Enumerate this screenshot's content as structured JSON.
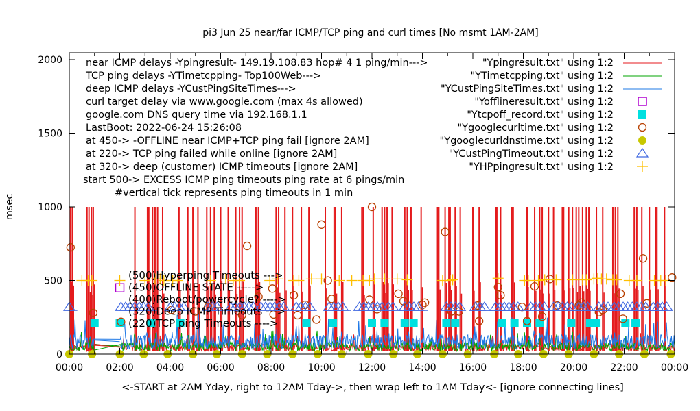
{
  "chart_data": {
    "type": "line",
    "title": "pi3 Jun 25  near/far ICMP/TCP ping and curl times [No msmt  1AM-2AM]",
    "xlabel": "<-START at 2AM Yday, right to 12AM Tday->, then wrap left to 1AM Tday<- [ignore connecting lines]",
    "ylabel": "msec",
    "xlim": [
      0,
      24
    ],
    "ylim": [
      0,
      2000
    ],
    "grid": false,
    "legend_position": "top-right",
    "x_tick_labels": [
      "00:00",
      "02:00",
      "04:00",
      "06:00",
      "08:00",
      "10:00",
      "12:00",
      "14:00",
      "16:00",
      "18:00",
      "20:00",
      "22:00",
      "00:00"
    ],
    "y_tick_labels": [
      "0",
      "500",
      "1000",
      "1500",
      "2000"
    ],
    "y_ticks": [
      0,
      500,
      1000,
      1500,
      2000
    ],
    "notes": [
      "near ICMP delays -Ypingresult- 149.19.108.83 hop# 4 1 ping/min--->",
      "TCP ping delays -YTimetcpping- Top100Web--->",
      "deep ICMP delays -YCustPingSiteTimes--->",
      "curl target delay via www.google.com (max 4s allowed)",
      "google.com DNS query time via 192.168.1.1",
      "LastBoot: 2022-06-24 15:26:08",
      "at 450-> -OFFLINE near ICMP+TCP ping fail [ignore 2AM]",
      "at 220-> TCP ping failed while online [ignore 2AM]",
      "at 320-> deep (customer) ICMP timeouts [ignore 2AM]",
      "start 500-> EXCESS ICMP ping timeouts ping rate at 6 pings/min",
      "#vertical tick represents ping timeouts in 1 min"
    ],
    "level_annotations": [
      "(500)Hyperping Timeouts --->",
      "(450)OFFLINE STATE ----->",
      "(400)Reboot/powercycle? ---->",
      "(320)Deep ICMP Timeouts --->",
      "(220)TCP ping Timeouts ---->"
    ],
    "series": [
      {
        "name": "\"Ypingresult.txt\" using 1:2",
        "style": "lines",
        "color": "#e41a1c",
        "baseline_msec": 40,
        "timeout_spikes_hours": [
          0.05,
          0.12,
          0.7,
          0.78,
          0.88,
          0.95,
          2.6,
          3.1,
          3.15,
          3.3,
          3.4,
          3.5,
          3.7,
          4.35,
          4.7,
          4.9,
          5.1,
          5.45,
          5.6,
          5.75,
          6.0,
          6.3,
          6.6,
          6.75,
          6.85,
          7.4,
          7.5,
          8.2,
          8.3,
          8.55,
          8.85,
          9.2,
          9.5,
          10.15,
          10.5,
          10.55,
          10.8,
          11.6,
          11.65,
          12.05,
          12.4,
          12.5,
          12.6,
          12.8,
          13.3,
          13.4,
          13.55,
          13.95,
          14.6,
          14.65,
          14.9,
          15.05,
          15.1,
          15.3,
          15.5,
          16.0,
          16.25,
          16.9,
          16.95,
          17.1,
          17.55,
          17.6,
          18.15,
          18.45,
          18.65,
          18.75,
          19.0,
          19.2,
          19.55,
          19.6,
          19.8,
          19.95,
          20.1,
          20.2,
          20.35,
          20.5,
          20.6,
          20.9,
          21.15,
          21.55,
          21.65,
          21.75,
          22.4,
          22.5,
          22.7,
          23.0,
          23.25,
          23.3,
          23.6
        ]
      },
      {
        "name": "\"YTimetcpping.txt\" using 1:2",
        "style": "lines",
        "color": "#00a600",
        "baseline_msec": 45
      },
      {
        "name": "\"YCustPingSiteTimes.txt\" using 1:2",
        "style": "lines",
        "color": "#1e78e6",
        "baseline_msec": 75
      },
      {
        "name": "\"Yofflineresult.txt\" using 1:2",
        "style": "points",
        "marker": "open-square",
        "color": "#b000d0",
        "points": [
          [
            2.0,
            450
          ]
        ]
      },
      {
        "name": "\"Ytcpoff_record.txt\" using 1:2",
        "style": "points",
        "marker": "filled-square",
        "color": "#00e0e0",
        "points": [
          [
            1.0,
            210
          ],
          [
            2.0,
            210
          ],
          [
            3.25,
            210
          ],
          [
            4.4,
            210
          ],
          [
            9.4,
            210
          ],
          [
            10.45,
            210
          ],
          [
            12.0,
            210
          ],
          [
            12.5,
            210
          ],
          [
            13.3,
            210
          ],
          [
            13.65,
            210
          ],
          [
            14.95,
            210
          ],
          [
            15.3,
            210
          ],
          [
            17.15,
            210
          ],
          [
            17.65,
            210
          ],
          [
            18.15,
            210
          ],
          [
            18.65,
            210
          ],
          [
            19.9,
            210
          ],
          [
            20.65,
            210
          ],
          [
            20.9,
            210
          ],
          [
            22.05,
            210
          ],
          [
            22.45,
            210
          ]
        ]
      },
      {
        "name": "\"Ygooglecurltime.txt\" using 1:2",
        "style": "points",
        "marker": "open-circle",
        "color": "#b84000",
        "points": [
          [
            0.05,
            725
          ],
          [
            0.95,
            280
          ],
          [
            2.05,
            220
          ],
          [
            4.05,
            300
          ],
          [
            5.0,
            290
          ],
          [
            5.5,
            320
          ],
          [
            6.85,
            265
          ],
          [
            7.05,
            735
          ],
          [
            7.5,
            390
          ],
          [
            8.05,
            445
          ],
          [
            8.1,
            270
          ],
          [
            8.9,
            400
          ],
          [
            9.05,
            265
          ],
          [
            9.35,
            335
          ],
          [
            10.0,
            880
          ],
          [
            9.8,
            235
          ],
          [
            10.25,
            500
          ],
          [
            10.4,
            375
          ],
          [
            12.0,
            1000
          ],
          [
            11.9,
            370
          ],
          [
            12.2,
            305
          ],
          [
            13.05,
            410
          ],
          [
            13.25,
            360
          ],
          [
            14.0,
            335
          ],
          [
            14.1,
            350
          ],
          [
            14.9,
            830
          ],
          [
            15.15,
            290
          ],
          [
            15.45,
            290
          ],
          [
            16.2,
            330
          ],
          [
            16.25,
            225
          ],
          [
            17.0,
            455
          ],
          [
            17.1,
            400
          ],
          [
            17.95,
            320
          ],
          [
            18.15,
            225
          ],
          [
            18.45,
            460
          ],
          [
            18.75,
            255
          ],
          [
            19.05,
            510
          ],
          [
            19.35,
            330
          ],
          [
            20.2,
            330
          ],
          [
            20.3,
            350
          ],
          [
            21.0,
            285
          ],
          [
            21.15,
            300
          ],
          [
            21.85,
            410
          ],
          [
            21.95,
            240
          ],
          [
            22.75,
            650
          ],
          [
            22.9,
            345
          ],
          [
            23.9,
            520
          ]
        ]
      },
      {
        "name": "\"Ygooglecurldnstime.txt\" using 1:2",
        "style": "points",
        "marker": "filled-circle",
        "color": "#c8c800",
        "points": [
          [
            0.0,
            0
          ],
          [
            0.9,
            0
          ],
          [
            2.0,
            0
          ],
          [
            2.95,
            0
          ],
          [
            3.9,
            0
          ],
          [
            4.9,
            0
          ],
          [
            5.85,
            0
          ],
          [
            6.85,
            0
          ],
          [
            7.85,
            0
          ],
          [
            8.85,
            0
          ],
          [
            9.85,
            0
          ],
          [
            10.8,
            0
          ],
          [
            11.85,
            0
          ],
          [
            12.85,
            0
          ],
          [
            13.8,
            0
          ],
          [
            14.8,
            0
          ],
          [
            15.8,
            0
          ],
          [
            16.85,
            0
          ],
          [
            17.8,
            0
          ],
          [
            18.8,
            0
          ],
          [
            19.8,
            0
          ],
          [
            20.8,
            0
          ],
          [
            21.8,
            0
          ],
          [
            22.8,
            0
          ],
          [
            23.85,
            0
          ]
        ]
      },
      {
        "name": "\"YCustPingTimeout.txt\" using 1:2",
        "style": "points",
        "marker": "open-triangle",
        "color": "#4169e1",
        "y_level_msec": 320,
        "clusters_hours": [
          [
            0.0,
            0.1
          ],
          [
            2.05,
            3.25
          ],
          [
            4.0,
            4.6
          ],
          [
            5.5,
            6.0
          ],
          [
            6.4,
            7.3
          ],
          [
            7.6,
            8.6
          ],
          [
            9.0,
            9.6
          ],
          [
            10.3,
            10.95
          ],
          [
            11.5,
            12.4
          ],
          [
            12.65,
            13.0
          ],
          [
            13.3,
            14.0
          ],
          [
            14.95,
            15.5
          ],
          [
            16.1,
            16.6
          ],
          [
            16.9,
            17.1
          ],
          [
            17.25,
            17.9
          ],
          [
            18.3,
            18.85
          ],
          [
            19.2,
            19.95
          ],
          [
            20.2,
            20.7
          ],
          [
            21.0,
            21.4
          ],
          [
            21.6,
            23.0
          ],
          [
            23.15,
            23.7
          ]
        ]
      },
      {
        "name": "\"YHPpingresult.txt\" using 1:2",
        "style": "points",
        "marker": "plus",
        "color": "#ffbf00",
        "y_level_msec": 500,
        "points": [
          [
            0.5,
            500
          ],
          [
            0.75,
            500
          ],
          [
            0.9,
            500
          ],
          [
            2.0,
            500
          ],
          [
            3.0,
            500
          ],
          [
            3.4,
            510
          ],
          [
            3.6,
            510
          ],
          [
            3.75,
            500
          ],
          [
            4.1,
            500
          ],
          [
            4.3,
            500
          ],
          [
            5.6,
            500
          ],
          [
            6.2,
            510
          ],
          [
            6.5,
            500
          ],
          [
            6.75,
            500
          ],
          [
            7.95,
            500
          ],
          [
            8.25,
            510
          ],
          [
            8.9,
            500
          ],
          [
            9.1,
            500
          ],
          [
            9.6,
            510
          ],
          [
            10.0,
            510
          ],
          [
            10.7,
            500
          ],
          [
            11.2,
            500
          ],
          [
            11.65,
            500
          ],
          [
            11.9,
            500
          ],
          [
            12.1,
            510
          ],
          [
            12.5,
            510
          ],
          [
            13.0,
            510
          ],
          [
            13.4,
            505
          ],
          [
            14.8,
            500
          ],
          [
            15.1,
            500
          ],
          [
            15.2,
            505
          ],
          [
            17.0,
            515
          ],
          [
            18.05,
            500
          ],
          [
            18.2,
            500
          ],
          [
            18.6,
            500
          ],
          [
            18.85,
            505
          ],
          [
            19.3,
            505
          ],
          [
            19.95,
            505
          ],
          [
            20.35,
            505
          ],
          [
            20.5,
            505
          ],
          [
            20.8,
            510
          ],
          [
            20.95,
            515
          ],
          [
            21.1,
            510
          ],
          [
            21.3,
            510
          ],
          [
            21.55,
            505
          ],
          [
            21.7,
            505
          ],
          [
            22.2,
            500
          ],
          [
            22.5,
            500
          ],
          [
            23.2,
            500
          ],
          [
            23.45,
            500
          ],
          [
            23.65,
            500
          ]
        ]
      }
    ]
  }
}
